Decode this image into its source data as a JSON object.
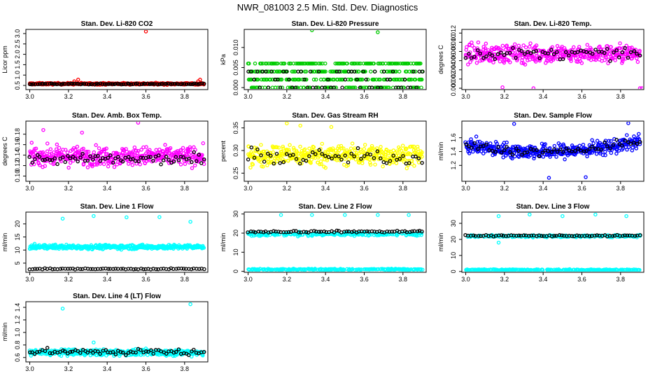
{
  "page_title": "NWR_081003  2.5 Min. Std. Dev. Diagnostics",
  "colors": {
    "red": "#ff0000",
    "green": "#00cc00",
    "magenta": "#ff00ff",
    "yellow": "#ffff00",
    "blue": "#0000ff",
    "cyan": "#00ffff",
    "black": "#000000"
  },
  "chart_data": [
    {
      "type": "scatter",
      "title": "Stan. Dev. Li-820 CO2",
      "ylabel": "Licor ppm",
      "xlim": [
        2.98,
        3.92
      ],
      "ylim": [
        0.3,
        3.2
      ],
      "xticks": [
        "3.0",
        "3.2",
        "3.4",
        "3.6",
        "3.8"
      ],
      "yticks": [
        "0.5",
        "1.0",
        "1.5",
        "2.0",
        "2.5",
        "3.0"
      ],
      "series": [
        {
          "name": "all",
          "color": "red",
          "count": 400,
          "base": 0.58,
          "spread": 0.05,
          "outliers": [
            [
              3.6,
              3.1
            ],
            [
              3.25,
              0.78
            ],
            [
              3.88,
              0.78
            ],
            [
              3.87,
              0.7
            ],
            [
              3.23,
              0.7
            ]
          ]
        },
        {
          "name": "black",
          "color": "black",
          "count": 90,
          "base": 0.57,
          "spread": 0.03
        }
      ]
    },
    {
      "type": "scatter",
      "title": "Stan. Dev. Li-820 Pressure",
      "ylabel": "kPa",
      "xlim": [
        2.98,
        3.92
      ],
      "ylim": [
        -0.0005,
        0.0145
      ],
      "xticks": [
        "3.0",
        "3.2",
        "3.4",
        "3.6",
        "3.8"
      ],
      "yticks": [
        "0.000",
        "0.005",
        "0.010"
      ],
      "series": [
        {
          "name": "all",
          "color": "green",
          "count": 420,
          "levels": [
            0.0,
            0.002,
            0.004,
            0.006
          ],
          "outliers": [
            [
              3.33,
              0.0143
            ],
            [
              3.67,
              0.0138
            ]
          ]
        },
        {
          "name": "black",
          "color": "black",
          "count": 60,
          "levels": [
            0.0,
            0.002,
            0.004
          ]
        }
      ]
    },
    {
      "type": "scatter",
      "title": "Stan. Dev. Li-820 Temp.",
      "ylabel": "degrees C",
      "xlim": [
        2.98,
        3.92
      ],
      "ylim": [
        -0.0003,
        0.0128
      ],
      "xticks": [
        "3.0",
        "3.2",
        "3.4",
        "3.6",
        "3.8"
      ],
      "yticks": [
        "0.000",
        "0.002",
        "0.004",
        "0.006",
        "0.008",
        "0.010",
        "0.012"
      ],
      "series": [
        {
          "name": "all",
          "color": "magenta",
          "count": 420,
          "base": 0.0075,
          "spread": 0.0025,
          "outliers": [
            [
              3.9,
              0.0
            ],
            [
              3.91,
              0.0
            ],
            [
              3.35,
              0.0
            ],
            [
              3.19,
              0.0002
            ]
          ]
        },
        {
          "name": "black",
          "color": "black",
          "count": 60,
          "base": 0.0075,
          "spread": 0.0015
        }
      ]
    },
    {
      "type": "scatter",
      "title": "Stan. Dev. Amb. Box Temp.",
      "ylabel": "degrees C",
      "xlim": [
        2.98,
        3.92
      ],
      "ylim": [
        0.09,
        0.205
      ],
      "xticks": [
        "3.0",
        "3.2",
        "3.4",
        "3.6",
        "3.8"
      ],
      "yticks": [
        "0.10",
        "0.12",
        "0.14",
        "0.16",
        "0.18"
      ],
      "series": [
        {
          "name": "all",
          "color": "magenta",
          "count": 420,
          "base": 0.138,
          "spread": 0.022,
          "outliers": [
            [
              3.56,
              0.202
            ],
            [
              3.07,
              0.188
            ],
            [
              3.27,
              0.183
            ]
          ]
        },
        {
          "name": "black",
          "color": "black",
          "count": 70,
          "base": 0.132,
          "spread": 0.012
        }
      ]
    },
    {
      "type": "scatter",
      "title": "Stan. Dev. Gas Stream RH",
      "ylabel": "percent",
      "xlim": [
        2.98,
        3.92
      ],
      "ylim": [
        0.232,
        0.365
      ],
      "xticks": [
        "3.0",
        "3.2",
        "3.4",
        "3.6",
        "3.8"
      ],
      "yticks": [
        "0.25",
        "0.30",
        "0.35"
      ],
      "series": [
        {
          "name": "all",
          "color": "yellow",
          "count": 420,
          "base": 0.29,
          "spread": 0.028,
          "outliers": [
            [
              3.2,
              0.36
            ],
            [
              3.27,
              0.355
            ],
            [
              3.43,
              0.352
            ]
          ]
        },
        {
          "name": "black",
          "color": "black",
          "count": 55,
          "base": 0.285,
          "spread": 0.02
        }
      ]
    },
    {
      "type": "scatter",
      "title": "Stan. Dev. Sample Flow",
      "ylabel": "ml/min",
      "xlim": [
        2.98,
        3.92
      ],
      "ylim": [
        0.97,
        1.84
      ],
      "xticks": [
        "3.0",
        "3.2",
        "3.4",
        "3.6",
        "3.8"
      ],
      "yticks": [
        "1.2",
        "1.4",
        "1.6"
      ],
      "series": [
        {
          "name": "all",
          "color": "blue",
          "count": 420,
          "trend": "u",
          "base": 1.42,
          "spread": 0.13,
          "outliers": [
            [
              3.25,
              1.8
            ],
            [
              3.84,
              1.81
            ],
            [
              3.43,
              1.02
            ],
            [
              3.62,
              1.03
            ]
          ]
        },
        {
          "name": "black",
          "color": "black",
          "count": 60,
          "trend": "u",
          "base": 1.42,
          "spread": 0.08
        }
      ]
    },
    {
      "type": "scatter",
      "title": "Stan. Dev. Line 1 Flow",
      "ylabel": "ml/min",
      "xlim": [
        2.98,
        3.92
      ],
      "ylim": [
        1.5,
        24.5
      ],
      "xticks": [
        "3.0",
        "3.2",
        "3.4",
        "3.6",
        "3.8"
      ],
      "yticks": [
        "5",
        "10",
        "15",
        "20"
      ],
      "series": [
        {
          "name": "all",
          "color": "cyan",
          "count": 420,
          "base": 11.2,
          "spread": 1.0,
          "outliers": [
            [
              3.17,
              22.0
            ],
            [
              3.33,
              23.0
            ],
            [
              3.5,
              22.5
            ],
            [
              3.67,
              22.6
            ],
            [
              3.83,
              20.8
            ]
          ]
        },
        {
          "name": "black",
          "color": "black",
          "count": 70,
          "base": 2.8,
          "spread": 0.25
        }
      ]
    },
    {
      "type": "scatter",
      "title": "Stan. Dev. Line 2 Flow",
      "ylabel": "ml/min",
      "xlim": [
        2.98,
        3.92
      ],
      "ylim": [
        -0.5,
        31
      ],
      "xticks": [
        "3.0",
        "3.2",
        "3.4",
        "3.6",
        "3.8"
      ],
      "yticks": [
        "0",
        "10",
        "20",
        "30"
      ],
      "series": [
        {
          "name": "all",
          "color": "cyan",
          "count": 420,
          "base": 19.5,
          "spread": 1.3,
          "second_level": 1.0,
          "outliers": [
            [
              3.17,
              29.5
            ],
            [
              3.33,
              29.5
            ],
            [
              3.5,
              29.5
            ],
            [
              3.67,
              29.5
            ],
            [
              3.83,
              29.5
            ]
          ]
        },
        {
          "name": "black",
          "color": "black",
          "count": 70,
          "base": 20.8,
          "spread": 0.6
        }
      ]
    },
    {
      "type": "scatter",
      "title": "Stan. Dev. Line 3 Flow",
      "ylabel": "ml/min",
      "xlim": [
        2.98,
        3.92
      ],
      "ylim": [
        -0.5,
        37
      ],
      "xticks": [
        "3.0",
        "3.2",
        "3.4",
        "3.6",
        "3.8"
      ],
      "yticks": [
        "0",
        "10",
        "20",
        "30"
      ],
      "series": [
        {
          "name": "all",
          "color": "cyan",
          "count": 420,
          "base": 22.0,
          "spread": 0.9,
          "second_level": 1.0,
          "outliers": [
            [
              3.17,
              34.5
            ],
            [
              3.33,
              35.5
            ],
            [
              3.5,
              34.5
            ],
            [
              3.67,
              35.5
            ],
            [
              3.83,
              34.5
            ],
            [
              3.17,
              18.0
            ]
          ]
        },
        {
          "name": "black",
          "color": "black",
          "count": 70,
          "base": 22.3,
          "spread": 0.5
        }
      ]
    },
    {
      "type": "scatter",
      "title": "Stan. Dev. Line 4 (LT) Flow",
      "ylabel": "ml/min",
      "xlim": [
        2.98,
        3.92
      ],
      "ylim": [
        0.53,
        1.49
      ],
      "xticks": [
        "3.0",
        "3.2",
        "3.4",
        "3.6",
        "3.8"
      ],
      "yticks": [
        "0.6",
        "0.8",
        "1.0",
        "1.2",
        "1.4"
      ],
      "series": [
        {
          "name": "all",
          "color": "cyan",
          "count": 420,
          "base": 0.68,
          "spread": 0.06,
          "outliers": [
            [
              3.17,
              1.38
            ],
            [
              3.83,
              1.45
            ],
            [
              3.33,
              0.84
            ]
          ]
        },
        {
          "name": "black",
          "color": "black",
          "count": 70,
          "base": 0.69,
          "spread": 0.06
        }
      ]
    }
  ]
}
